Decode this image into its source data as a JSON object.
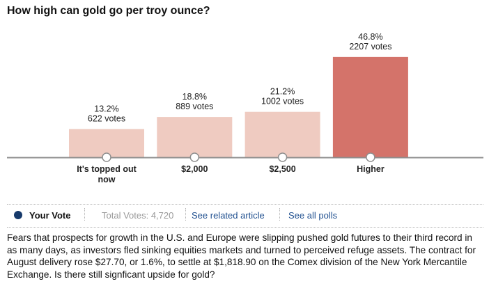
{
  "title": "How high can gold go per troy ounce?",
  "footer": {
    "your_vote_label": "Your Vote",
    "total_votes": "Total Votes: 4,720",
    "related_article": "See related article",
    "all_polls": "See all polls"
  },
  "description": "Fears that prospects for growth in the U.S. and Europe were slipping pushed gold futures to their third record in as many days, as investors fled sinking equities markets and turned to perceived refuge assets. The contract for August delivery rose $27.70, or 1.6%, to settle at $1,818.90 on the Comex division of the New York Mercantile Exchange. Is there still signficant upside for gold?",
  "colors": {
    "bar_light": "#efcbc1",
    "bar_highlight": "#d4736a",
    "axis": "#8e8e8e",
    "vote_dot": "#173a6b",
    "link": "#1f4f8f"
  },
  "chart_data": {
    "type": "bar",
    "categories": [
      "It's topped out now",
      "$2,000",
      "$2,500",
      "Higher"
    ],
    "category_lines": [
      [
        "It's topped out",
        "now"
      ],
      [
        "$2,000"
      ],
      [
        "$2,500"
      ],
      [
        "Higher"
      ]
    ],
    "values": [
      13.2,
      18.8,
      21.2,
      46.8
    ],
    "votes": [
      622,
      889,
      1002,
      2207
    ],
    "percent_labels": [
      "13.2%",
      "18.8%",
      "21.2%",
      "46.8%"
    ],
    "vote_labels": [
      "622 votes",
      "889 votes",
      "1002 votes",
      "2207 votes"
    ],
    "highlight_index": 3,
    "ylim": [
      0,
      100
    ]
  }
}
